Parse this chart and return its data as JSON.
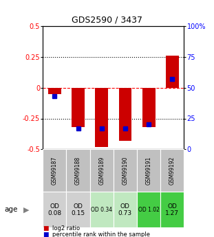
{
  "title": "GDS2590 / 3437",
  "samples": [
    "GSM99187",
    "GSM99188",
    "GSM99189",
    "GSM99190",
    "GSM99191",
    "GSM99192"
  ],
  "log2_ratio": [
    -0.05,
    -0.32,
    -0.48,
    -0.43,
    -0.32,
    0.26
  ],
  "percentile_rank": [
    43,
    17,
    17,
    17,
    20,
    57
  ],
  "ylim": [
    -0.5,
    0.5
  ],
  "yticks_left": [
    -0.5,
    -0.25,
    0,
    0.25,
    0.5
  ],
  "ytick_labels_left": [
    "-0.5",
    "-0.25",
    "0",
    "0.25",
    "0.5"
  ],
  "yticks_right": [
    0,
    25,
    50,
    75,
    100
  ],
  "ytick_labels_right": [
    "0",
    "25",
    "50",
    "75",
    "100%"
  ],
  "hlines": [
    -0.25,
    0,
    0.25
  ],
  "hline_styles": [
    "dotted",
    "dashed",
    "dotted"
  ],
  "hline_colors": [
    "black",
    "red",
    "black"
  ],
  "bar_color": "#cc0000",
  "dot_color": "#0000cc",
  "age_labels": [
    "OD\n0.08",
    "OD\n0.15",
    "OD 0.34",
    "OD\n0.73",
    "OD 1.02",
    "OD\n1.27"
  ],
  "age_bg_colors": [
    "#d0d0d0",
    "#d0d0d0",
    "#c0e8c0",
    "#c0e8c0",
    "#44cc44",
    "#44cc44"
  ],
  "sample_bg_color": "#c0c0c0",
  "legend_items": [
    "log2 ratio",
    "percentile rank within the sample"
  ],
  "legend_colors": [
    "#cc0000",
    "#0000cc"
  ]
}
